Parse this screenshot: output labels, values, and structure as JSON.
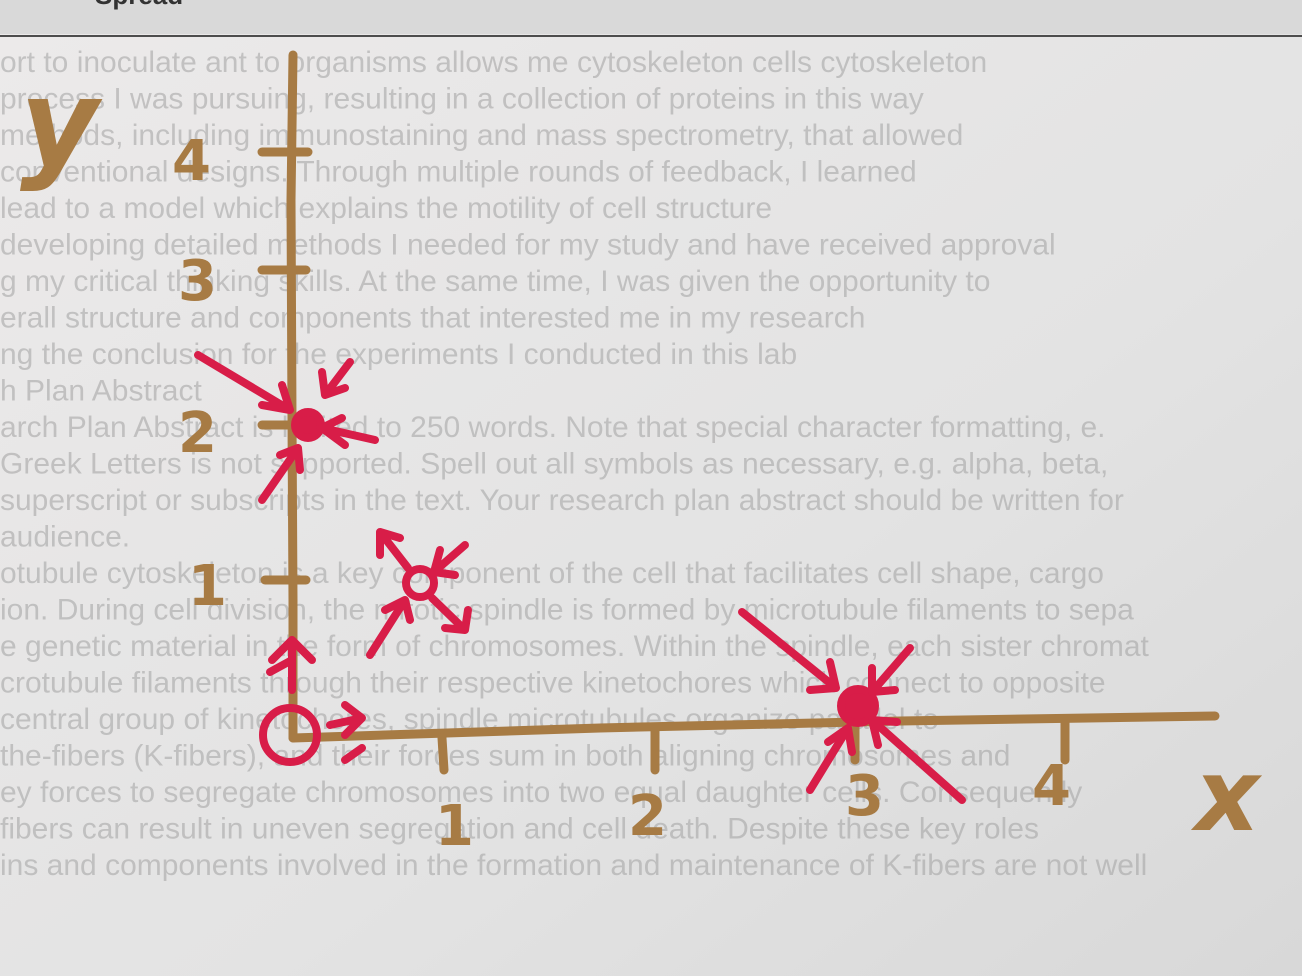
{
  "page": {
    "header_fragment": "Spread",
    "bleed_through_lines": [
      "ort to inoculate ant to organisms allows me cytoskeleton cells cytoskeleton",
      "process I was pursuing, resulting in a collection of proteins in this way",
      "methods, including immunostaining and mass spectrometry, that allowed",
      "conventional designs. Through multiple rounds of feedback, I learned",
      "lead to a model which explains the motility of cell structure",
      "developing detailed methods I needed for my study and have received approval",
      "g my critical thinking skills. At the same time, I was given the opportunity to",
      "erall structure and components that interested me in my research",
      "ng the conclusion for the experiments I conducted in this lab",
      "h Plan Abstract",
      "arch Plan Abstract is limited to 250 words. Note that special character formatting, e.",
      "Greek Letters is not supported. Spell out all symbols as necessary, e.g. alpha, beta,",
      "superscript or subscripts in the text. Your research plan abstract should be written for",
      "audience.",
      "otubule cytoskeleton is a key component of the cell that facilitates cell shape, cargo",
      "ion. During cell division, the mitotic spindle is formed by microtubule filaments to sepa",
      "e genetic material in the form of chromosomes. Within the spindle, each sister chromat",
      "crotubule filaments through their respective kinetochores which connect to opposite",
      "central group of kinetochores, spindle microtubules organize parallel to",
      "the-fibers (K-fibers), and their forces sum in both aligning chromosomes and",
      "ey forces to segregate chromosomes into two equal daughter cells. Consequently",
      "fibers can result in uneven segregation and cell death. Despite these key roles",
      "ins and components involved in the formation and maintenance of K-fibers are not well"
    ]
  },
  "diagram": {
    "y_axis_label": "y",
    "x_axis_label": "x",
    "y_tick_labels": [
      "4",
      "3",
      "2",
      "1"
    ],
    "x_tick_labels": [
      "1",
      "2",
      "3",
      "4"
    ],
    "ink_colors": {
      "axes": "#a77b44",
      "arrows": "#d81d48"
    },
    "points": [
      {
        "name": "origin",
        "x": 0,
        "y": 0,
        "type": "unstable",
        "arrows": "outward"
      },
      {
        "name": "y-axis-point",
        "x": 0,
        "y": 2,
        "type": "stable",
        "arrows": "inward"
      },
      {
        "name": "interior-point",
        "x": 1,
        "y": 1,
        "type": "saddle",
        "arrows": "mixed"
      },
      {
        "name": "x-axis-point",
        "x": 3,
        "y": 0,
        "type": "stable",
        "arrows": "inward"
      }
    ]
  }
}
